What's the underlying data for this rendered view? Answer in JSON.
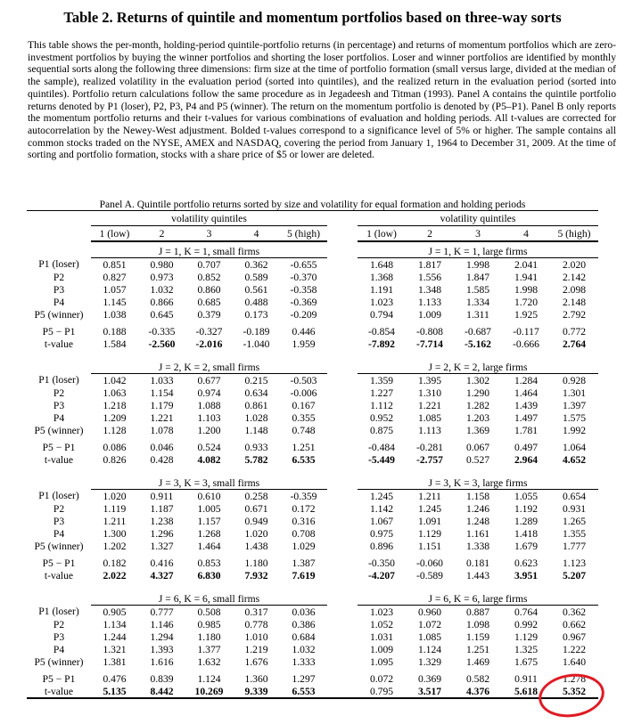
{
  "title": "Table 2. Returns of quintile and momentum portfolios based on three-way sorts",
  "description": "This table shows the per-month, holding-period quintile-portfolio returns (in percentage) and returns of momentum portfolios which are zero-investment portfolios by buying the winner portfolios and shorting the loser portfolios. Loser and winner portfolios are identified by monthly sequential sorts along the following three dimensions: firm size at the time of portfolio formation (small versus large, divided at the median of the sample), realized volatility in the evaluation period (sorted into quintiles), and the realized return in the evaluation period (sorted into quintiles). Portfolio return calculations follow the same procedure as in Jegadeesh and Titman (1993). Panel A contains the quintile portfolio returns denoted by P1 (loser), P2, P3, P4 and P5 (winner). The return on the momentum portfolio is denoted by (P5–P1). Panel B only reports the momentum portfolio returns and their t-values for various combinations of evaluation and holding periods. All t-values are corrected for autocorrelation by the Newey-West adjustment. Bolded t-values correspond to a significance level of 5% or higher. The sample contains all common stocks traded on the NYSE, AMEX and NASDAQ, covering the period from January 1, 1964 to December 31, 2009. At the time of sorting and portfolio formation, stocks with a share price of $5 or lower are deleted.",
  "table": {
    "panel_title": "Panel A. Quintile portfolio returns sorted by size and volatility for equal formation and holding periods",
    "group_header": "volatility quintiles",
    "columns": [
      "1 (low)",
      "2",
      "3",
      "4",
      "5 (high)"
    ],
    "row_labels": [
      "P1 (loser)",
      "P2",
      "P3",
      "P4",
      "P5 (winner)",
      "P5 − P1",
      "t-value"
    ],
    "blocks": [
      {
        "small_label": "J = 1, K = 1, small firms",
        "large_label": "J = 1, K = 1, large firms",
        "small": [
          [
            "0.851",
            "0.980",
            "0.707",
            "0.362",
            "-0.655"
          ],
          [
            "0.827",
            "0.973",
            "0.852",
            "0.589",
            "-0.370"
          ],
          [
            "1.057",
            "1.032",
            "0.860",
            "0.561",
            "-0.358"
          ],
          [
            "1.145",
            "0.866",
            "0.685",
            "0.488",
            "-0.369"
          ],
          [
            "1.038",
            "0.645",
            "0.379",
            "0.173",
            "-0.209"
          ],
          [
            "0.188",
            "-0.335",
            "-0.327",
            "-0.189",
            "0.446"
          ],
          [
            "1.584",
            "-2.560",
            "-2.016",
            "-1.040",
            "1.959"
          ]
        ],
        "small_tvalue_bold": [
          false,
          true,
          true,
          false,
          false
        ],
        "large": [
          [
            "1.648",
            "1.817",
            "1.998",
            "2.041",
            "2.020"
          ],
          [
            "1.368",
            "1.556",
            "1.847",
            "1.941",
            "2.142"
          ],
          [
            "1.191",
            "1.348",
            "1.585",
            "1.998",
            "2.098"
          ],
          [
            "1.023",
            "1.133",
            "1.334",
            "1.720",
            "2.148"
          ],
          [
            "0.794",
            "1.009",
            "1.311",
            "1.925",
            "2.792"
          ],
          [
            "-0.854",
            "-0.808",
            "-0.687",
            "-0.117",
            "0.772"
          ],
          [
            "-7.892",
            "-7.714",
            "-5.162",
            "-0.666",
            "2.764"
          ]
        ],
        "large_tvalue_bold": [
          true,
          true,
          true,
          false,
          true
        ]
      },
      {
        "small_label": "J = 2, K = 2, small firms",
        "large_label": "J = 2, K = 2, large firms",
        "small": [
          [
            "1.042",
            "1.033",
            "0.677",
            "0.215",
            "-0.503"
          ],
          [
            "1.063",
            "1.154",
            "0.974",
            "0.634",
            "-0.006"
          ],
          [
            "1.218",
            "1.179",
            "1.088",
            "0.861",
            "0.167"
          ],
          [
            "1.209",
            "1.221",
            "1.103",
            "1.028",
            "0.355"
          ],
          [
            "1.128",
            "1.078",
            "1.200",
            "1.148",
            "0.748"
          ],
          [
            "0.086",
            "0.046",
            "0.524",
            "0.933",
            "1.251"
          ],
          [
            "0.826",
            "0.428",
            "4.082",
            "5.782",
            "6.535"
          ]
        ],
        "small_tvalue_bold": [
          false,
          false,
          true,
          true,
          true
        ],
        "large": [
          [
            "1.359",
            "1.395",
            "1.302",
            "1.284",
            "0.928"
          ],
          [
            "1.227",
            "1.310",
            "1.290",
            "1.464",
            "1.301"
          ],
          [
            "1.112",
            "1.221",
            "1.282",
            "1.439",
            "1.397"
          ],
          [
            "0.952",
            "1.085",
            "1.203",
            "1.497",
            "1.575"
          ],
          [
            "0.875",
            "1.113",
            "1.369",
            "1.781",
            "1.992"
          ],
          [
            "-0.484",
            "-0.281",
            "0.067",
            "0.497",
            "1.064"
          ],
          [
            "-5.449",
            "-2.757",
            "0.527",
            "2.964",
            "4.652"
          ]
        ],
        "large_tvalue_bold": [
          true,
          true,
          false,
          true,
          true
        ]
      },
      {
        "small_label": "J = 3, K = 3, small firms",
        "large_label": "J = 3, K = 3, large firms",
        "small": [
          [
            "1.020",
            "0.911",
            "0.610",
            "0.258",
            "-0.359"
          ],
          [
            "1.119",
            "1.187",
            "1.005",
            "0.671",
            "0.172"
          ],
          [
            "1.211",
            "1.238",
            "1.157",
            "0.949",
            "0.316"
          ],
          [
            "1.300",
            "1.296",
            "1.268",
            "1.020",
            "0.708"
          ],
          [
            "1.202",
            "1.327",
            "1.464",
            "1.438",
            "1.029"
          ],
          [
            "0.182",
            "0.416",
            "0.853",
            "1.180",
            "1.387"
          ],
          [
            "2.022",
            "4.327",
            "6.830",
            "7.932",
            "7.619"
          ]
        ],
        "small_tvalue_bold": [
          true,
          true,
          true,
          true,
          true
        ],
        "large": [
          [
            "1.245",
            "1.211",
            "1.158",
            "1.055",
            "0.654"
          ],
          [
            "1.142",
            "1.245",
            "1.246",
            "1.192",
            "0.931"
          ],
          [
            "1.067",
            "1.091",
            "1.248",
            "1.289",
            "1.265"
          ],
          [
            "0.975",
            "1.129",
            "1.161",
            "1.418",
            "1.355"
          ],
          [
            "0.896",
            "1.151",
            "1.338",
            "1.679",
            "1.777"
          ],
          [
            "-0.350",
            "-0.060",
            "0.181",
            "0.623",
            "1.123"
          ],
          [
            "-4.207",
            "-0.589",
            "1.443",
            "3.951",
            "5.207"
          ]
        ],
        "large_tvalue_bold": [
          true,
          false,
          false,
          true,
          true
        ]
      },
      {
        "small_label": "J = 6, K = 6, small firms",
        "large_label": "J = 6, K = 6, large firms",
        "small": [
          [
            "0.905",
            "0.777",
            "0.508",
            "0.317",
            "0.036"
          ],
          [
            "1.134",
            "1.146",
            "0.985",
            "0.778",
            "0.386"
          ],
          [
            "1.244",
            "1.294",
            "1.180",
            "1.010",
            "0.684"
          ],
          [
            "1.321",
            "1.393",
            "1.377",
            "1.219",
            "1.032"
          ],
          [
            "1.381",
            "1.616",
            "1.632",
            "1.676",
            "1.333"
          ],
          [
            "0.476",
            "0.839",
            "1.124",
            "1.360",
            "1.297"
          ],
          [
            "5.135",
            "8.442",
            "10.269",
            "9.339",
            "6.553"
          ]
        ],
        "small_tvalue_bold": [
          true,
          true,
          true,
          true,
          true
        ],
        "large": [
          [
            "1.023",
            "0.960",
            "0.887",
            "0.764",
            "0.362"
          ],
          [
            "1.052",
            "1.072",
            "1.098",
            "0.992",
            "0.662"
          ],
          [
            "1.031",
            "1.085",
            "1.159",
            "1.129",
            "0.967"
          ],
          [
            "1.009",
            "1.124",
            "1.251",
            "1.325",
            "1.222"
          ],
          [
            "1.095",
            "1.329",
            "1.469",
            "1.675",
            "1.640"
          ],
          [
            "0.072",
            "0.369",
            "0.582",
            "0.911",
            "1.278"
          ],
          [
            "0.795",
            "3.517",
            "4.376",
            "5.618",
            "5.352"
          ]
        ],
        "large_tvalue_bold": [
          false,
          true,
          true,
          true,
          true
        ]
      }
    ]
  },
  "annotation": {
    "highlight_color": "#e01b24"
  }
}
